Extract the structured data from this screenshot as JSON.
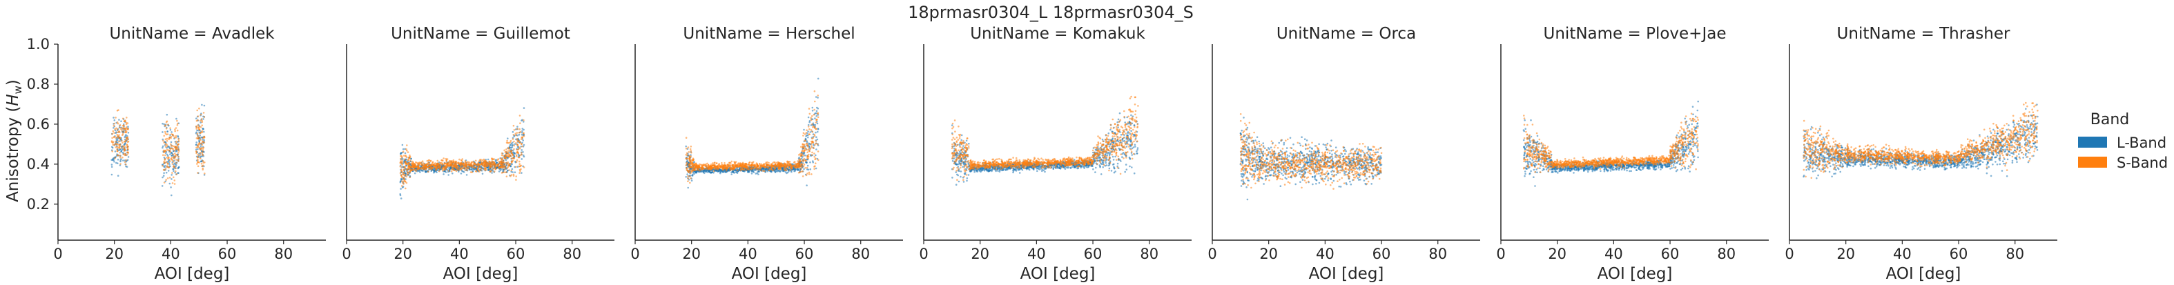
{
  "chart_data": {
    "type": "scatter",
    "title": "18prmasr0304_L 18prmasr0304_S",
    "xlabel": "AOI [deg]",
    "ylabel": "Anisotropy (H_w)",
    "ylabel_parts": {
      "main": "Anisotropy (",
      "italic": "H",
      "sub": "w",
      "end": ")"
    },
    "xlim": [
      0,
      95
    ],
    "ylim": [
      0.02,
      1.0
    ],
    "xticks": [
      0,
      20,
      40,
      60,
      80
    ],
    "yticks": [
      0.2,
      0.4,
      0.6,
      0.8,
      1.0
    ],
    "xtick_labels": [
      "0",
      "20",
      "40",
      "60",
      "80"
    ],
    "ytick_labels": [
      "0.2",
      "0.4",
      "0.6",
      "0.8",
      "1.0"
    ],
    "grid": false,
    "legend": {
      "title": "Band",
      "placement": "right",
      "entries": [
        {
          "name": "L-Band",
          "color": "#1f77b4"
        },
        {
          "name": "S-Band",
          "color": "#ff7f0e"
        }
      ]
    },
    "panels": [
      {
        "title": "UnitName = Avadlek",
        "segments": [
          {
            "x0": 19,
            "x1": 25,
            "center_start": 0.5,
            "center_end": 0.5,
            "spread_start": 0.12,
            "spread_end": 0.12,
            "s_offset": 0.02
          },
          {
            "x0": 37,
            "x1": 43,
            "center_start": 0.44,
            "center_end": 0.46,
            "spread_start": 0.14,
            "spread_end": 0.14,
            "s_offset": 0.01
          },
          {
            "x0": 49,
            "x1": 52,
            "center_start": 0.52,
            "center_end": 0.52,
            "spread_start": 0.14,
            "spread_end": 0.14,
            "s_offset": 0.0
          }
        ]
      },
      {
        "title": "UnitName = Guillemot",
        "segments": [
          {
            "x0": 19,
            "x1": 23,
            "center_start": 0.36,
            "center_end": 0.39,
            "spread_start": 0.12,
            "spread_end": 0.05,
            "s_offset": 0.01
          },
          {
            "x0": 23,
            "x1": 55,
            "center_start": 0.38,
            "center_end": 0.39,
            "spread_start": 0.02,
            "spread_end": 0.03,
            "s_offset": 0.01
          },
          {
            "x0": 55,
            "x1": 63,
            "center_start": 0.4,
            "center_end": 0.5,
            "spread_start": 0.04,
            "spread_end": 0.16,
            "s_offset": 0.0
          }
        ]
      },
      {
        "title": "UnitName = Herschel",
        "segments": [
          {
            "x0": 18,
            "x1": 21,
            "center_start": 0.4,
            "center_end": 0.38,
            "spread_start": 0.12,
            "spread_end": 0.03,
            "s_offset": 0.01
          },
          {
            "x0": 21,
            "x1": 58,
            "center_start": 0.37,
            "center_end": 0.38,
            "spread_start": 0.015,
            "spread_end": 0.02,
            "s_offset": 0.015
          },
          {
            "x0": 58,
            "x1": 65,
            "center_start": 0.4,
            "center_end": 0.58,
            "spread_start": 0.04,
            "spread_end": 0.22,
            "s_offset": 0.0
          }
        ]
      },
      {
        "title": "UnitName = Komakuk",
        "segments": [
          {
            "x0": 10,
            "x1": 16,
            "center_start": 0.45,
            "center_end": 0.42,
            "spread_start": 0.14,
            "spread_end": 0.08,
            "s_offset": 0.03
          },
          {
            "x0": 16,
            "x1": 60,
            "center_start": 0.38,
            "center_end": 0.4,
            "spread_start": 0.02,
            "spread_end": 0.02,
            "s_offset": 0.015
          },
          {
            "x0": 60,
            "x1": 76,
            "center_start": 0.42,
            "center_end": 0.55,
            "spread_start": 0.05,
            "spread_end": 0.16,
            "s_offset": 0.03
          }
        ]
      },
      {
        "title": "UnitName = Orca",
        "segments": [
          {
            "x0": 10,
            "x1": 16,
            "center_start": 0.45,
            "center_end": 0.42,
            "spread_start": 0.16,
            "spread_end": 0.1,
            "s_offset": 0.0
          },
          {
            "x0": 16,
            "x1": 60,
            "center_start": 0.41,
            "center_end": 0.4,
            "spread_start": 0.09,
            "spread_end": 0.08,
            "s_offset": 0.0
          }
        ]
      },
      {
        "title": "UnitName = Plove+Jae",
        "segments": [
          {
            "x0": 8,
            "x1": 18,
            "center_start": 0.48,
            "center_end": 0.4,
            "spread_start": 0.14,
            "spread_end": 0.04,
            "s_offset": 0.02
          },
          {
            "x0": 18,
            "x1": 60,
            "center_start": 0.38,
            "center_end": 0.4,
            "spread_start": 0.02,
            "spread_end": 0.02,
            "s_offset": 0.02
          },
          {
            "x0": 60,
            "x1": 70,
            "center_start": 0.42,
            "center_end": 0.55,
            "spread_start": 0.04,
            "spread_end": 0.16,
            "s_offset": 0.02
          }
        ]
      },
      {
        "title": "UnitName = Thrasher",
        "segments": [
          {
            "x0": 5,
            "x1": 20,
            "center_start": 0.46,
            "center_end": 0.43,
            "spread_start": 0.12,
            "spread_end": 0.05,
            "s_offset": 0.02
          },
          {
            "x0": 20,
            "x1": 60,
            "center_start": 0.43,
            "center_end": 0.41,
            "spread_start": 0.04,
            "spread_end": 0.03,
            "s_offset": 0.02
          },
          {
            "x0": 60,
            "x1": 88,
            "center_start": 0.42,
            "center_end": 0.54,
            "spread_start": 0.04,
            "spread_end": 0.14,
            "s_offset": 0.03
          }
        ]
      }
    ]
  }
}
